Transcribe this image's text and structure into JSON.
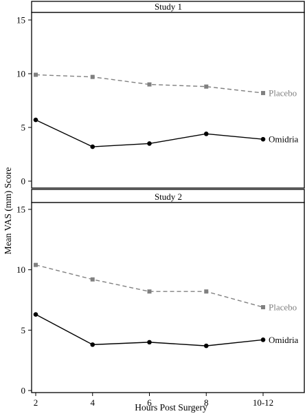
{
  "chart_data": {
    "type": "line",
    "xlabel": "Hours Post Surgery",
    "ylabel": "Mean VAS (mm) Score",
    "x_categories": [
      "2",
      "4",
      "6",
      "8",
      "10-12"
    ],
    "ylim": [
      0,
      15
    ],
    "yticks": [
      0,
      5,
      10,
      15
    ],
    "grid": false,
    "panels": [
      {
        "title": "Study 1",
        "series": [
          {
            "name": "Placebo",
            "color": "#808080",
            "line_style": "dashed",
            "marker": "square",
            "values": [
              9.9,
              9.7,
              9.0,
              8.8,
              8.2
            ]
          },
          {
            "name": "Omidria",
            "color": "#000000",
            "line_style": "solid",
            "marker": "circle",
            "values": [
              5.7,
              3.2,
              3.5,
              4.4,
              3.9
            ]
          }
        ]
      },
      {
        "title": "Study 2",
        "series": [
          {
            "name": "Placebo",
            "color": "#808080",
            "line_style": "dashed",
            "marker": "square",
            "values": [
              10.4,
              9.2,
              8.2,
              8.2,
              6.9
            ]
          },
          {
            "name": "Omidria",
            "color": "#000000",
            "line_style": "solid",
            "marker": "circle",
            "values": [
              6.3,
              3.8,
              4.0,
              3.7,
              4.2
            ]
          }
        ]
      }
    ]
  }
}
